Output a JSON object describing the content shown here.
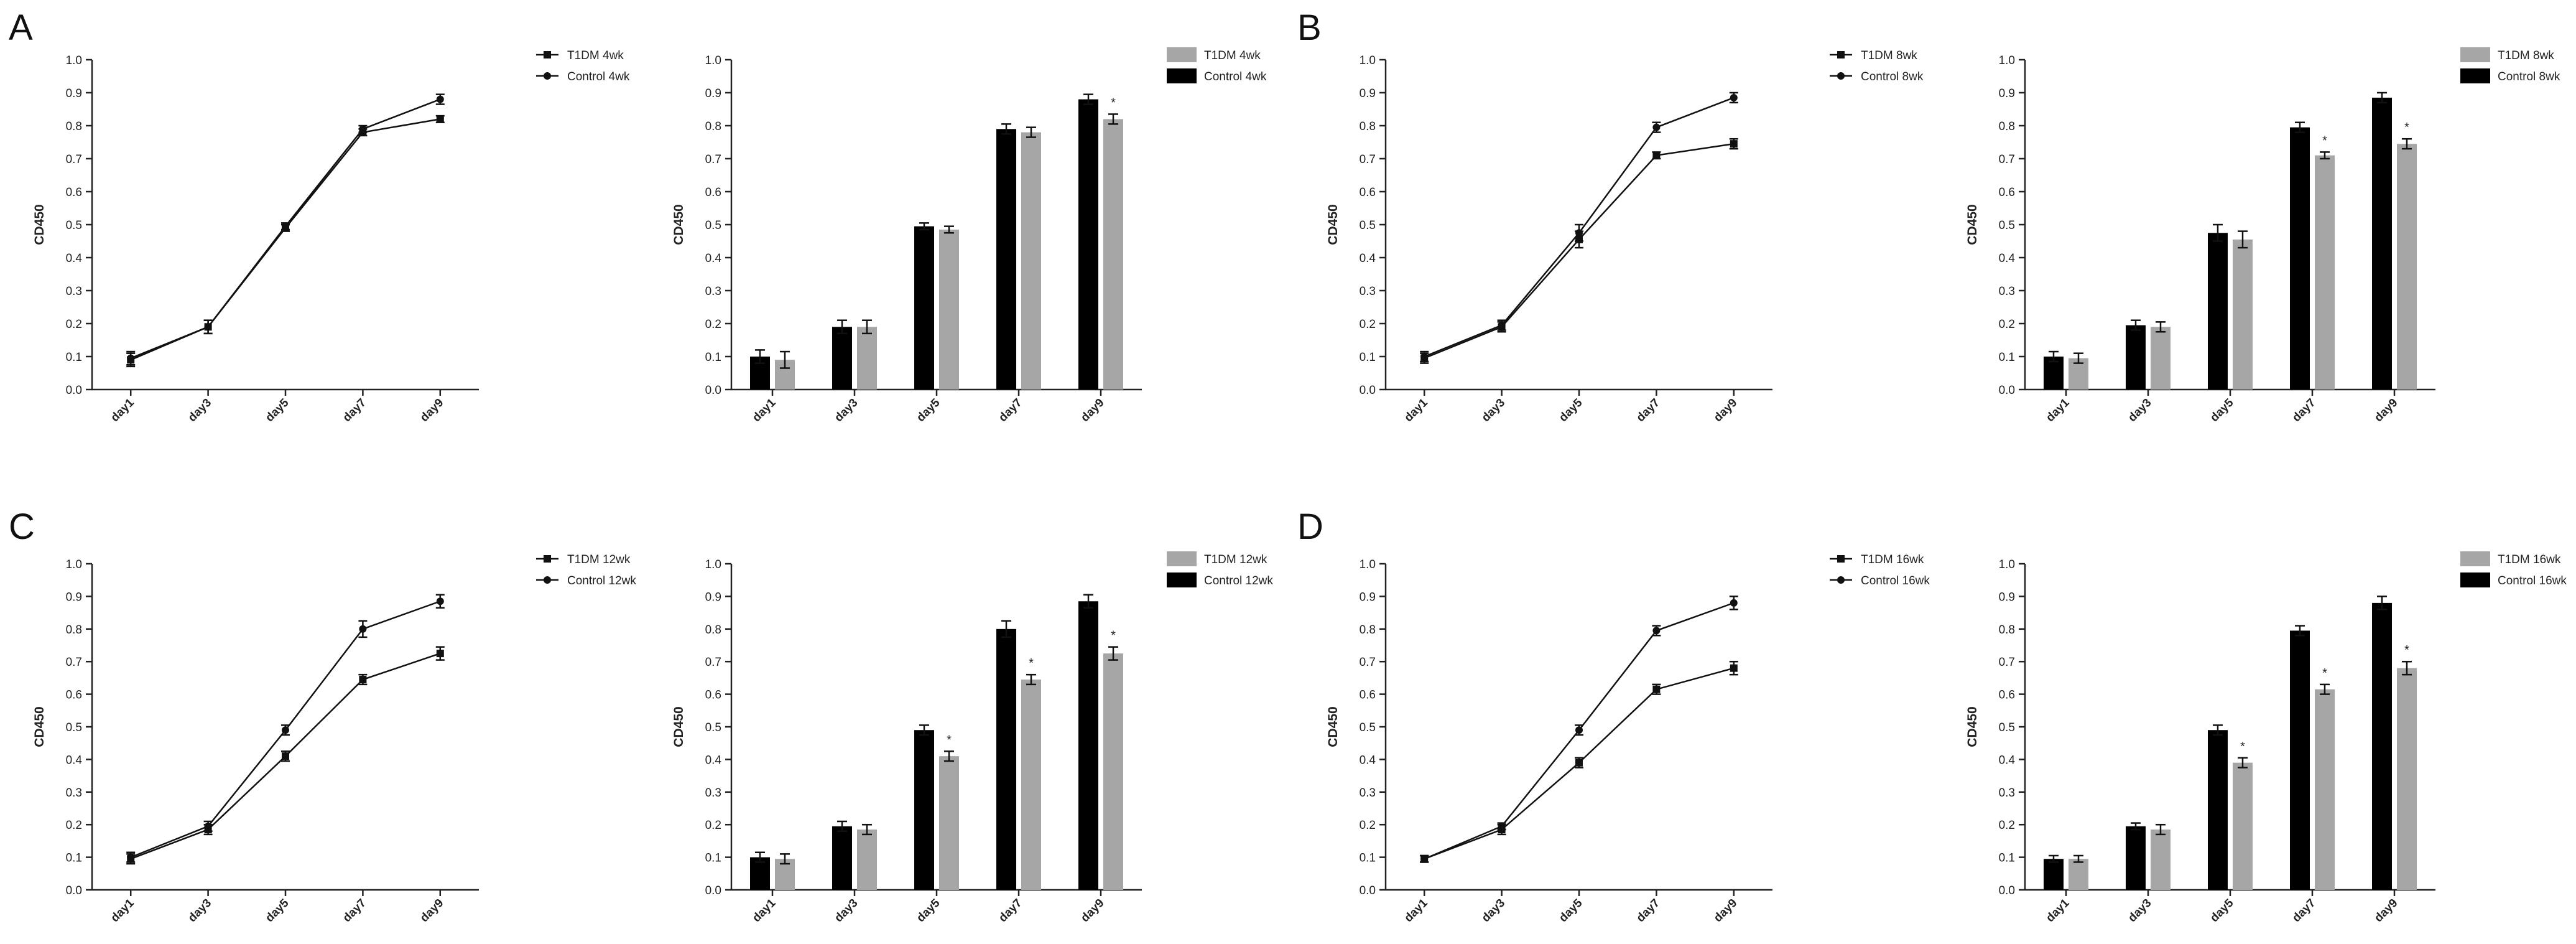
{
  "figure": {
    "panels": [
      {
        "letter": "A"
      },
      {
        "letter": "B"
      },
      {
        "letter": "C"
      },
      {
        "letter": "D"
      }
    ]
  },
  "colors": {
    "t1dm_bar": "#a6a6a6",
    "control_bar": "#000000",
    "axis": "#222222",
    "line": "#111111"
  },
  "chart_data": [
    {
      "panel": "A",
      "type": "line",
      "ylabel": "CD450",
      "categories": [
        "day1",
        "day3",
        "day5",
        "day7",
        "day9"
      ],
      "ylim": [
        0,
        1.0
      ],
      "yticks": [
        "0.0",
        "0.1",
        "0.2",
        "0.3",
        "0.4",
        "0.5",
        "0.6",
        "0.7",
        "0.8",
        "0.9",
        "1.0"
      ],
      "legend": [
        "T1DM 4wk",
        "Control 4wk"
      ],
      "series": [
        {
          "name": "T1DM 4wk",
          "marker": "square",
          "values": [
            0.09,
            0.19,
            0.49,
            0.78,
            0.82
          ],
          "errors": [
            0.02,
            0.02,
            0.01,
            0.01,
            0.01
          ]
        },
        {
          "name": "Control 4wk",
          "marker": "circle",
          "values": [
            0.095,
            0.19,
            0.495,
            0.79,
            0.88
          ],
          "errors": [
            0.02,
            0.02,
            0.01,
            0.01,
            0.015
          ]
        }
      ]
    },
    {
      "panel": "A",
      "type": "bar",
      "ylabel": "CD450",
      "categories": [
        "day1",
        "day3",
        "day5",
        "day7",
        "day9"
      ],
      "ylim": [
        0,
        1.0
      ],
      "yticks": [
        "0.0",
        "0.1",
        "0.2",
        "0.3",
        "0.4",
        "0.5",
        "0.6",
        "0.7",
        "0.8",
        "0.9",
        "1.0"
      ],
      "legend": [
        "T1DM 4wk",
        "Control 4wk"
      ],
      "series": [
        {
          "name": "Control 4wk",
          "values": [
            0.1,
            0.19,
            0.495,
            0.79,
            0.88
          ],
          "errors": [
            0.02,
            0.02,
            0.01,
            0.015,
            0.015
          ]
        },
        {
          "name": "T1DM 4wk",
          "values": [
            0.09,
            0.19,
            0.485,
            0.78,
            0.82
          ],
          "errors": [
            0.025,
            0.02,
            0.01,
            0.015,
            0.015
          ]
        }
      ],
      "significance": [
        "",
        "",
        "",
        "",
        "*"
      ]
    },
    {
      "panel": "B",
      "type": "line",
      "ylabel": "CD450",
      "categories": [
        "day1",
        "day3",
        "day5",
        "day7",
        "day9"
      ],
      "ylim": [
        0,
        1.0
      ],
      "yticks": [
        "0.0",
        "0.1",
        "0.2",
        "0.3",
        "0.4",
        "0.5",
        "0.6",
        "0.7",
        "0.8",
        "0.9",
        "1.0"
      ],
      "legend": [
        "T1DM 8wk",
        "Control 8wk"
      ],
      "series": [
        {
          "name": "T1DM 8wk",
          "marker": "square",
          "values": [
            0.095,
            0.19,
            0.455,
            0.71,
            0.745
          ],
          "errors": [
            0.015,
            0.015,
            0.025,
            0.01,
            0.015
          ]
        },
        {
          "name": "Control 8wk",
          "marker": "circle",
          "values": [
            0.1,
            0.195,
            0.475,
            0.795,
            0.885
          ],
          "errors": [
            0.015,
            0.015,
            0.025,
            0.015,
            0.015
          ]
        }
      ]
    },
    {
      "panel": "B",
      "type": "bar",
      "ylabel": "CD450",
      "categories": [
        "day1",
        "day3",
        "day5",
        "day7",
        "day9"
      ],
      "ylim": [
        0,
        1.0
      ],
      "yticks": [
        "0.0",
        "0.1",
        "0.2",
        "0.3",
        "0.4",
        "0.5",
        "0.6",
        "0.7",
        "0.8",
        "0.9",
        "1.0"
      ],
      "legend": [
        "T1DM 8wk",
        "Control 8wk"
      ],
      "series": [
        {
          "name": "Control 8wk",
          "values": [
            0.1,
            0.195,
            0.475,
            0.795,
            0.885
          ],
          "errors": [
            0.015,
            0.015,
            0.025,
            0.015,
            0.015
          ]
        },
        {
          "name": "T1DM 8wk",
          "values": [
            0.095,
            0.19,
            0.455,
            0.71,
            0.745
          ],
          "errors": [
            0.015,
            0.015,
            0.025,
            0.01,
            0.015
          ]
        }
      ],
      "significance": [
        "",
        "",
        "",
        "*",
        "*"
      ]
    },
    {
      "panel": "C",
      "type": "line",
      "ylabel": "CD450",
      "categories": [
        "day1",
        "day3",
        "day5",
        "day7",
        "day9"
      ],
      "ylim": [
        0,
        1.0
      ],
      "yticks": [
        "0.0",
        "0.1",
        "0.2",
        "0.3",
        "0.4",
        "0.5",
        "0.6",
        "0.7",
        "0.8",
        "0.9",
        "1.0"
      ],
      "legend": [
        "T1DM 12wk",
        "Control 12wk"
      ],
      "series": [
        {
          "name": "T1DM 12wk",
          "marker": "square",
          "values": [
            0.095,
            0.185,
            0.41,
            0.645,
            0.725
          ],
          "errors": [
            0.015,
            0.015,
            0.015,
            0.015,
            0.02
          ]
        },
        {
          "name": "Control 12wk",
          "marker": "circle",
          "values": [
            0.1,
            0.195,
            0.49,
            0.8,
            0.885
          ],
          "errors": [
            0.015,
            0.015,
            0.015,
            0.025,
            0.02
          ]
        }
      ]
    },
    {
      "panel": "C",
      "type": "bar",
      "ylabel": "CD450",
      "categories": [
        "day1",
        "day3",
        "day5",
        "day7",
        "day9"
      ],
      "ylim": [
        0,
        1.0
      ],
      "yticks": [
        "0.0",
        "0.1",
        "0.2",
        "0.3",
        "0.4",
        "0.5",
        "0.6",
        "0.7",
        "0.8",
        "0.9",
        "1.0"
      ],
      "legend": [
        "T1DM 12wk",
        "Control 12wk"
      ],
      "series": [
        {
          "name": "Control 12wk",
          "values": [
            0.1,
            0.195,
            0.49,
            0.8,
            0.885
          ],
          "errors": [
            0.015,
            0.015,
            0.015,
            0.025,
            0.02
          ]
        },
        {
          "name": "T1DM 12wk",
          "values": [
            0.095,
            0.185,
            0.41,
            0.645,
            0.725
          ],
          "errors": [
            0.015,
            0.015,
            0.015,
            0.015,
            0.02
          ]
        }
      ],
      "significance": [
        "",
        "",
        "*",
        "*",
        "*"
      ]
    },
    {
      "panel": "D",
      "type": "line",
      "ylabel": "CD450",
      "categories": [
        "day1",
        "day3",
        "day5",
        "day7",
        "day9"
      ],
      "ylim": [
        0,
        1.0
      ],
      "yticks": [
        "0.0",
        "0.1",
        "0.2",
        "0.3",
        "0.4",
        "0.5",
        "0.6",
        "0.7",
        "0.8",
        "0.9",
        "1.0"
      ],
      "legend": [
        "T1DM 16wk",
        "Control 16wk"
      ],
      "series": [
        {
          "name": "T1DM 16wk",
          "marker": "square",
          "values": [
            0.095,
            0.185,
            0.39,
            0.615,
            0.68
          ],
          "errors": [
            0.01,
            0.015,
            0.015,
            0.015,
            0.02
          ]
        },
        {
          "name": "Control 16wk",
          "marker": "circle",
          "values": [
            0.095,
            0.195,
            0.49,
            0.795,
            0.88
          ],
          "errors": [
            0.01,
            0.01,
            0.015,
            0.015,
            0.02
          ]
        }
      ]
    },
    {
      "panel": "D",
      "type": "bar",
      "ylabel": "CD450",
      "categories": [
        "day1",
        "day3",
        "day5",
        "day7",
        "day9"
      ],
      "ylim": [
        0,
        1.0
      ],
      "yticks": [
        "0.0",
        "0.1",
        "0.2",
        "0.3",
        "0.4",
        "0.5",
        "0.6",
        "0.7",
        "0.8",
        "0.9",
        "1.0"
      ],
      "legend": [
        "T1DM 16wk",
        "Control 16wk"
      ],
      "series": [
        {
          "name": "Control 16wk",
          "values": [
            0.095,
            0.195,
            0.49,
            0.795,
            0.88
          ],
          "errors": [
            0.01,
            0.01,
            0.015,
            0.015,
            0.02
          ]
        },
        {
          "name": "T1DM 16wk",
          "values": [
            0.095,
            0.185,
            0.39,
            0.615,
            0.68
          ],
          "errors": [
            0.01,
            0.015,
            0.015,
            0.015,
            0.02
          ]
        }
      ],
      "significance": [
        "",
        "",
        "*",
        "*",
        "*"
      ]
    }
  ]
}
